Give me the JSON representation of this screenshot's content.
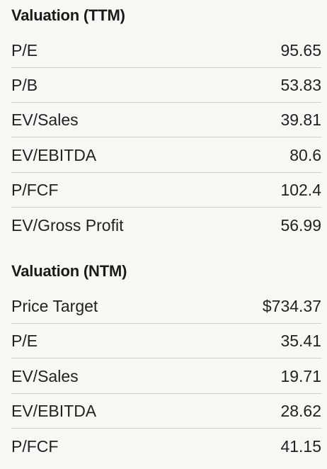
{
  "sections": [
    {
      "title": "Valuation (TTM)",
      "rows": [
        {
          "label": "P/E",
          "value": "95.65"
        },
        {
          "label": "P/B",
          "value": "53.83"
        },
        {
          "label": "EV/Sales",
          "value": "39.81"
        },
        {
          "label": "EV/EBITDA",
          "value": "80.6"
        },
        {
          "label": "P/FCF",
          "value": "102.4"
        },
        {
          "label": "EV/Gross Profit",
          "value": "56.99"
        }
      ]
    },
    {
      "title": "Valuation (NTM)",
      "rows": [
        {
          "label": "Price Target",
          "value": "$734.37"
        },
        {
          "label": "P/E",
          "value": "35.41"
        },
        {
          "label": "EV/Sales",
          "value": "19.71"
        },
        {
          "label": "EV/EBITDA",
          "value": "28.62"
        },
        {
          "label": "P/FCF",
          "value": "41.15"
        }
      ]
    }
  ]
}
